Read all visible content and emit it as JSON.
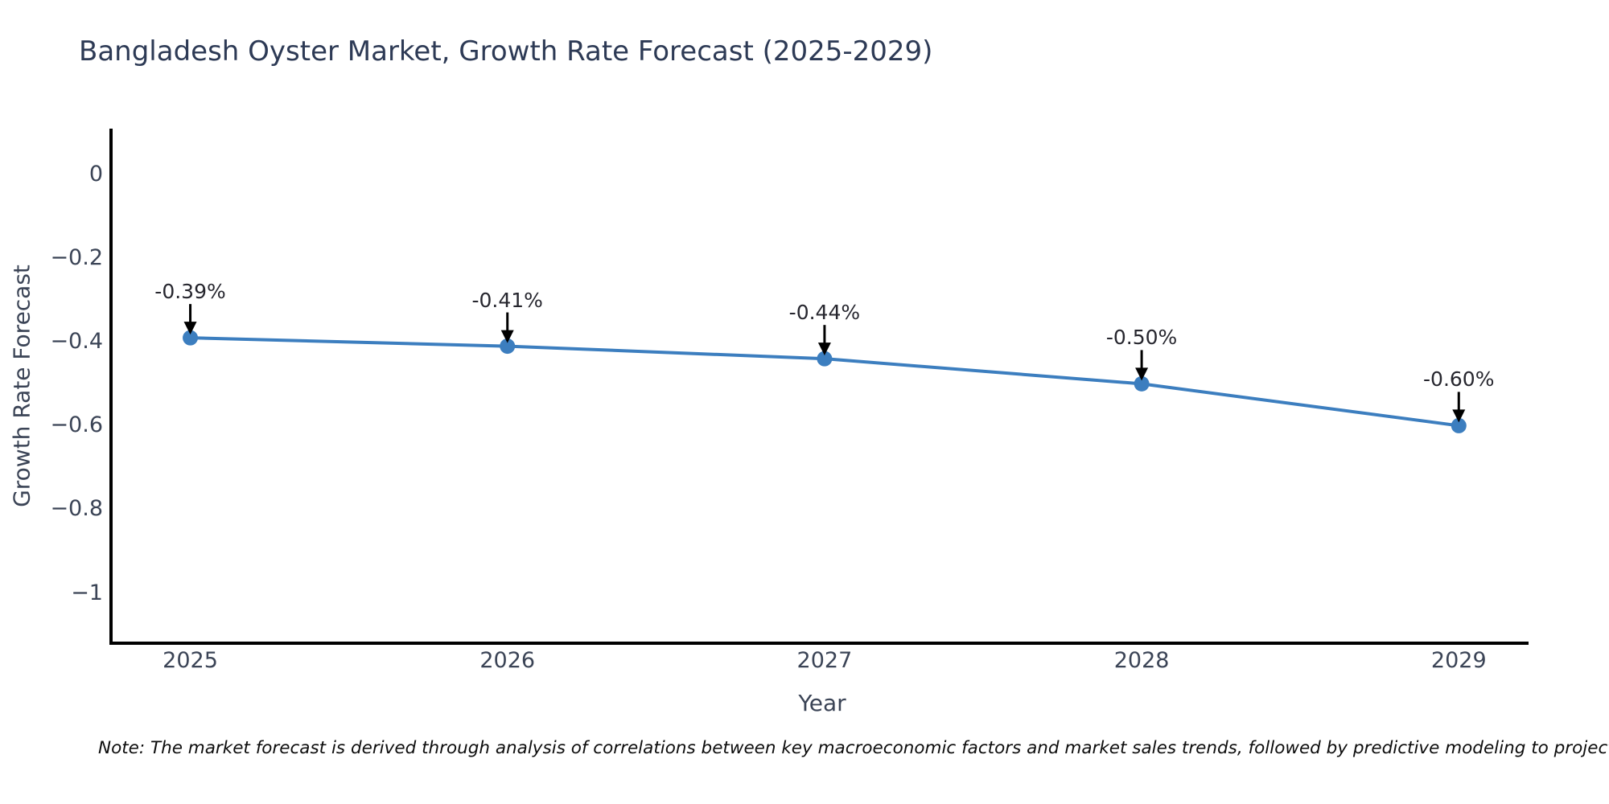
{
  "title": "Bangladesh Oyster Market, Growth Rate Forecast (2025-2029)",
  "note": "Note: The market forecast is derived through analysis of correlations between key macroeconomic factors and market sales trends, followed by predictive modeling to project future sa",
  "chart_data": {
    "type": "line",
    "title": "Bangladesh Oyster Market, Growth Rate Forecast (2025-2029)",
    "xlabel": "Year",
    "ylabel": "Growth Rate Forecast",
    "x": [
      2025,
      2026,
      2027,
      2028,
      2029
    ],
    "values": [
      -0.39,
      -0.41,
      -0.44,
      -0.5,
      -0.6
    ],
    "point_labels": [
      "-0.39%",
      "-0.41%",
      "-0.44%",
      "-0.50%",
      "-0.60%"
    ],
    "xticks": [
      2025,
      2026,
      2027,
      2028,
      2029
    ],
    "xtick_labels": [
      "2025",
      "2026",
      "2027",
      "2028",
      "2029"
    ],
    "yticks": [
      0,
      -0.2,
      -0.4,
      -0.6,
      -0.8,
      -1
    ],
    "ytick_labels": [
      "0",
      "−0.2",
      "−0.4",
      "−0.6",
      "−0.8",
      "−1"
    ],
    "xlim": [
      2024.75,
      2029.22
    ],
    "ylim": [
      -1.12,
      0.11
    ],
    "grid": false,
    "legend": null,
    "line_color": "#3c7ebf",
    "marker_color": "#3c7ebf",
    "axis_color": "#000000",
    "annotation_arrow_color": "#000000"
  },
  "colors": {
    "title_text": "#2d3a55",
    "tick_text": "#3b4456",
    "annotation_text": "#26262e",
    "note_text": "#0d0d0d",
    "background": "#ffffff"
  }
}
